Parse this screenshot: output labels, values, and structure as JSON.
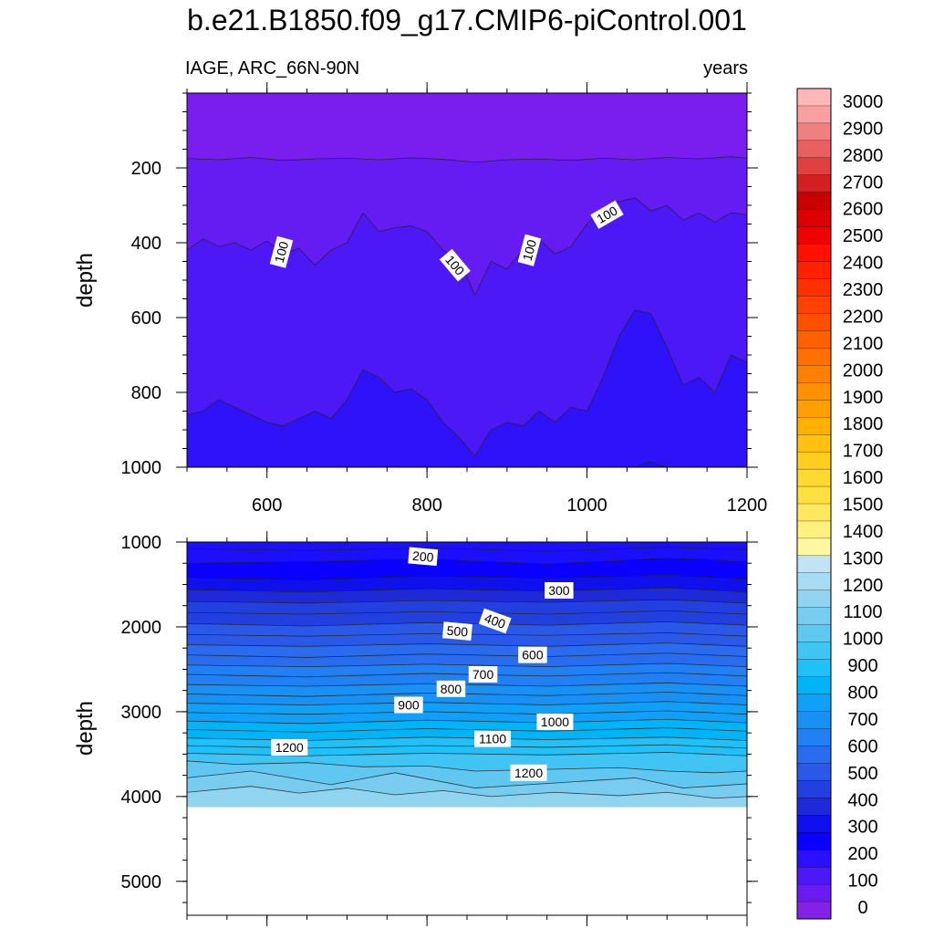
{
  "figure": {
    "title": "b.e21.B1850.f09_g17.CMIP6-piControl.001",
    "left_string": "IAGE, ARC_66N-90N",
    "right_string": "years"
  },
  "colorbar": {
    "labels": [
      "0",
      "100",
      "200",
      "300",
      "400",
      "500",
      "600",
      "700",
      "800",
      "900",
      "1000",
      "1100",
      "1200",
      "1300",
      "1400",
      "1500",
      "1600",
      "1700",
      "1800",
      "1900",
      "2000",
      "2100",
      "2200",
      "2300",
      "2400",
      "2500",
      "2600",
      "2700",
      "2800",
      "2900",
      "3000"
    ],
    "colors": [
      "#8520e8",
      "#6a1cf0",
      "#4c18f6",
      "#2a10fb",
      "#0a00ff",
      "#1010ee",
      "#1e2ad8",
      "#2240e0",
      "#2a58e8",
      "#2a6cf0",
      "#2080f4",
      "#1890f4",
      "#10a0f8",
      "#00b4f8",
      "#20c0f8",
      "#40c4f4",
      "#60c8f0",
      "#78ccf0",
      "#90d4f0",
      "#a8dcf2",
      "#c0e4f4",
      "#fff8a0",
      "#fff080",
      "#ffe860",
      "#ffe040",
      "#ffd830",
      "#ffcc20",
      "#ffc010",
      "#ffb000",
      "#ffa000",
      "#ff9000",
      "#ff8000",
      "#ff7000",
      "#ff6000",
      "#ff5000",
      "#ff4000",
      "#ff3000",
      "#ff2000",
      "#ff1000",
      "#f00000",
      "#dc0000",
      "#c80000",
      "#d22020",
      "#e04040",
      "#e86060",
      "#f08080",
      "#f8a0a0",
      "#ffb8b8"
    ]
  },
  "chart_data": [
    {
      "type": "contour",
      "panel": "upper",
      "title": "",
      "xlabel": "",
      "ylabel": "depth",
      "xlim": [
        500,
        1200
      ],
      "ylim": [
        1000,
        0
      ],
      "y_reversed": true,
      "x_ticks": [
        600,
        800,
        1000,
        1200
      ],
      "y_ticks": [
        200,
        400,
        600,
        800,
        1000
      ],
      "x_tick_labels": [
        "600",
        "800",
        "1000",
        "1200"
      ],
      "y_tick_labels": [
        "200",
        "400",
        "600",
        "800",
        "1000"
      ],
      "contour_interval": 50,
      "contour_labels": [
        {
          "text": "100",
          "x": 618,
          "y": 425,
          "angle": -75
        },
        {
          "text": "100",
          "x": 835,
          "y": 460,
          "angle": 50
        },
        {
          "text": "100",
          "x": 928,
          "y": 420,
          "angle": -75
        },
        {
          "text": "100",
          "x": 1025,
          "y": 325,
          "angle": -30
        }
      ],
      "isolines": [
        {
          "level": 50,
          "color": "#7a1ef0",
          "fill_below": "#651cf2",
          "x": [
            500,
            540,
            580,
            620,
            660,
            700,
            740,
            780,
            820,
            860,
            900,
            940,
            980,
            1020,
            1060,
            1100,
            1140,
            1180,
            1200
          ],
          "y": [
            175,
            178,
            172,
            180,
            176,
            174,
            178,
            173,
            177,
            185,
            178,
            176,
            180,
            174,
            178,
            172,
            176,
            170,
            174
          ]
        },
        {
          "level": 100,
          "color": "#651cf2",
          "fill_below": "#4c18f6",
          "x": [
            500,
            520,
            540,
            560,
            580,
            600,
            620,
            640,
            660,
            680,
            700,
            720,
            740,
            760,
            780,
            800,
            820,
            840,
            860,
            880,
            900,
            920,
            940,
            960,
            980,
            1000,
            1020,
            1040,
            1060,
            1080,
            1100,
            1120,
            1140,
            1160,
            1180,
            1200
          ],
          "y": [
            420,
            390,
            410,
            400,
            420,
            395,
            430,
            415,
            460,
            420,
            400,
            320,
            370,
            360,
            355,
            370,
            420,
            440,
            540,
            450,
            470,
            420,
            390,
            430,
            410,
            350,
            310,
            290,
            280,
            315,
            300,
            340,
            320,
            345,
            320,
            325
          ]
        },
        {
          "level": 150,
          "color": "#4c18f6",
          "fill_below": "#2e12fa",
          "x": [
            500,
            520,
            540,
            560,
            580,
            600,
            620,
            640,
            660,
            680,
            700,
            720,
            740,
            760,
            780,
            800,
            820,
            840,
            860,
            880,
            900,
            920,
            940,
            960,
            980,
            1000,
            1020,
            1040,
            1060,
            1080,
            1100,
            1120,
            1140,
            1160,
            1180,
            1200
          ],
          "y": [
            860,
            850,
            820,
            840,
            860,
            880,
            890,
            870,
            850,
            870,
            820,
            740,
            760,
            800,
            790,
            820,
            880,
            920,
            970,
            900,
            880,
            890,
            850,
            880,
            840,
            850,
            760,
            650,
            580,
            590,
            680,
            780,
            760,
            800,
            700,
            720
          ]
        },
        {
          "level": 200,
          "color": "#2e12fa",
          "fill_below": "#1a10fd",
          "x": [
            1060,
            1070,
            1080,
            1090,
            1100
          ],
          "y": [
            1000,
            990,
            985,
            995,
            1000
          ]
        }
      ]
    },
    {
      "type": "contour",
      "panel": "lower",
      "title": "",
      "xlabel": "",
      "ylabel": "depth",
      "xlim": [
        500,
        1200
      ],
      "ylim": [
        5400,
        1000
      ],
      "y_reversed": true,
      "x_ticks": [
        600,
        800,
        1000,
        1200
      ],
      "y_ticks": [
        1000,
        2000,
        3000,
        4000,
        5000
      ],
      "y_tick_labels": [
        "1000",
        "2000",
        "3000",
        "4000",
        "5000"
      ],
      "data_bottom": 4125,
      "contour_interval": 50,
      "contour_labels": [
        {
          "text": "200",
          "x": 795,
          "y": 1170,
          "angle": 5
        },
        {
          "text": "300",
          "x": 965,
          "y": 1570,
          "angle": 0
        },
        {
          "text": "400",
          "x": 885,
          "y": 1930,
          "angle": 20
        },
        {
          "text": "500",
          "x": 838,
          "y": 2050,
          "angle": 5
        },
        {
          "text": "600",
          "x": 932,
          "y": 2330,
          "angle": 0
        },
        {
          "text": "700",
          "x": 870,
          "y": 2560,
          "angle": 0
        },
        {
          "text": "800",
          "x": 830,
          "y": 2730,
          "angle": 0
        },
        {
          "text": "900",
          "x": 777,
          "y": 2920,
          "angle": 0
        },
        {
          "text": "1000",
          "x": 960,
          "y": 3120,
          "angle": 0
        },
        {
          "text": "1100",
          "x": 882,
          "y": 3320,
          "angle": 0
        },
        {
          "text": "1200",
          "x": 628,
          "y": 3420,
          "angle": 0
        },
        {
          "text": "1200",
          "x": 927,
          "y": 3720,
          "angle": 0
        }
      ],
      "isolines": [
        {
          "level": 150,
          "color": "#1a10fd",
          "x": [
            500,
            650,
            800,
            950,
            1100,
            1200
          ],
          "y": [
            1080,
            1100,
            1070,
            1110,
            1060,
            1090
          ]
        },
        {
          "level": 200,
          "color": "#0a00ff",
          "x": [
            500,
            650,
            800,
            950,
            1100,
            1200
          ],
          "y": [
            1250,
            1230,
            1200,
            1260,
            1190,
            1230
          ]
        },
        {
          "level": 250,
          "color": "#1010ee",
          "x": [
            500,
            650,
            800,
            950,
            1100,
            1200
          ],
          "y": [
            1420,
            1450,
            1400,
            1430,
            1390,
            1440
          ]
        },
        {
          "level": 300,
          "color": "#1e2ad8",
          "x": [
            500,
            650,
            800,
            950,
            1100,
            1200
          ],
          "y": [
            1560,
            1590,
            1550,
            1580,
            1540,
            1590
          ]
        },
        {
          "level": 350,
          "color": "#2240e0",
          "x": [
            500,
            650,
            800,
            950,
            1100,
            1200
          ],
          "y": [
            1700,
            1720,
            1690,
            1710,
            1680,
            1720
          ]
        },
        {
          "level": 400,
          "color": "#2240e0",
          "x": [
            500,
            650,
            800,
            950,
            1100,
            1200
          ],
          "y": [
            1830,
            1850,
            1820,
            1850,
            1810,
            1850
          ]
        },
        {
          "level": 450,
          "color": "#2a58e8",
          "x": [
            500,
            650,
            800,
            950,
            1100,
            1200
          ],
          "y": [
            1960,
            1990,
            1950,
            1980,
            1940,
            1980
          ]
        },
        {
          "level": 500,
          "color": "#2a58e8",
          "x": [
            500,
            650,
            800,
            950,
            1100,
            1200
          ],
          "y": [
            2090,
            2110,
            2080,
            2100,
            2070,
            2110
          ]
        },
        {
          "level": 550,
          "color": "#2a6cf0",
          "x": [
            500,
            650,
            800,
            950,
            1100,
            1200
          ],
          "y": [
            2210,
            2230,
            2200,
            2230,
            2190,
            2230
          ]
        },
        {
          "level": 600,
          "color": "#2a6cf0",
          "x": [
            500,
            650,
            800,
            950,
            1100,
            1200
          ],
          "y": [
            2330,
            2360,
            2320,
            2350,
            2310,
            2350
          ]
        },
        {
          "level": 650,
          "color": "#2080f4",
          "x": [
            500,
            650,
            800,
            950,
            1100,
            1200
          ],
          "y": [
            2450,
            2470,
            2440,
            2470,
            2430,
            2470
          ]
        },
        {
          "level": 700,
          "color": "#2080f4",
          "x": [
            500,
            650,
            800,
            950,
            1100,
            1200
          ],
          "y": [
            2560,
            2590,
            2550,
            2580,
            2540,
            2580
          ]
        },
        {
          "level": 750,
          "color": "#1890f4",
          "x": [
            500,
            650,
            800,
            950,
            1100,
            1200
          ],
          "y": [
            2680,
            2700,
            2670,
            2700,
            2660,
            2700
          ]
        },
        {
          "level": 800,
          "color": "#1890f4",
          "x": [
            500,
            650,
            800,
            950,
            1100,
            1200
          ],
          "y": [
            2790,
            2820,
            2780,
            2810,
            2770,
            2810
          ]
        },
        {
          "level": 850,
          "color": "#10a0f8",
          "x": [
            500,
            650,
            800,
            950,
            1100,
            1200
          ],
          "y": [
            2900,
            2920,
            2890,
            2920,
            2880,
            2920
          ]
        },
        {
          "level": 900,
          "color": "#10a0f8",
          "x": [
            500,
            650,
            800,
            950,
            1100,
            1200
          ],
          "y": [
            3010,
            3030,
            3000,
            3030,
            2990,
            3030
          ]
        },
        {
          "level": 950,
          "color": "#00b4f8",
          "x": [
            500,
            650,
            800,
            950,
            1100,
            1200
          ],
          "y": [
            3110,
            3140,
            3100,
            3130,
            3090,
            3130
          ]
        },
        {
          "level": 1000,
          "color": "#00b4f8",
          "x": [
            500,
            650,
            800,
            950,
            1100,
            1200
          ],
          "y": [
            3210,
            3240,
            3200,
            3230,
            3190,
            3230
          ]
        },
        {
          "level": 1050,
          "color": "#20c0f8",
          "x": [
            500,
            650,
            800,
            950,
            1100,
            1200
          ],
          "y": [
            3310,
            3340,
            3300,
            3330,
            3300,
            3340
          ]
        },
        {
          "level": 1100,
          "color": "#20c0f8",
          "x": [
            500,
            650,
            800,
            950,
            1100,
            1200
          ],
          "y": [
            3400,
            3430,
            3400,
            3420,
            3390,
            3430
          ]
        },
        {
          "level": 1150,
          "color": "#40c4f4",
          "x": [
            500,
            650,
            800,
            950,
            1100,
            1200
          ],
          "y": [
            3490,
            3520,
            3490,
            3510,
            3480,
            3520
          ]
        },
        {
          "level": 1200,
          "color": "#60c8f0",
          "x": [
            500,
            560,
            650,
            720,
            800,
            860,
            950,
            1040,
            1100,
            1160,
            1200
          ],
          "y": [
            3580,
            3620,
            3600,
            3650,
            3640,
            3700,
            3680,
            3660,
            3700,
            3720,
            3700
          ]
        },
        {
          "level": 1250,
          "color": "#78ccf0",
          "x": [
            500,
            580,
            680,
            760,
            860,
            960,
            1060,
            1120,
            1200
          ],
          "y": [
            3780,
            3700,
            3860,
            3720,
            3900,
            3840,
            3780,
            3900,
            3850
          ]
        },
        {
          "level": 1300,
          "color": "#90d4f0",
          "x": [
            500,
            580,
            640,
            700,
            760,
            820,
            880,
            960,
            1040,
            1100,
            1160,
            1200
          ],
          "y": [
            3950,
            3880,
            3960,
            3900,
            3980,
            3930,
            4000,
            3950,
            3990,
            3950,
            4020,
            4000
          ]
        }
      ]
    }
  ]
}
